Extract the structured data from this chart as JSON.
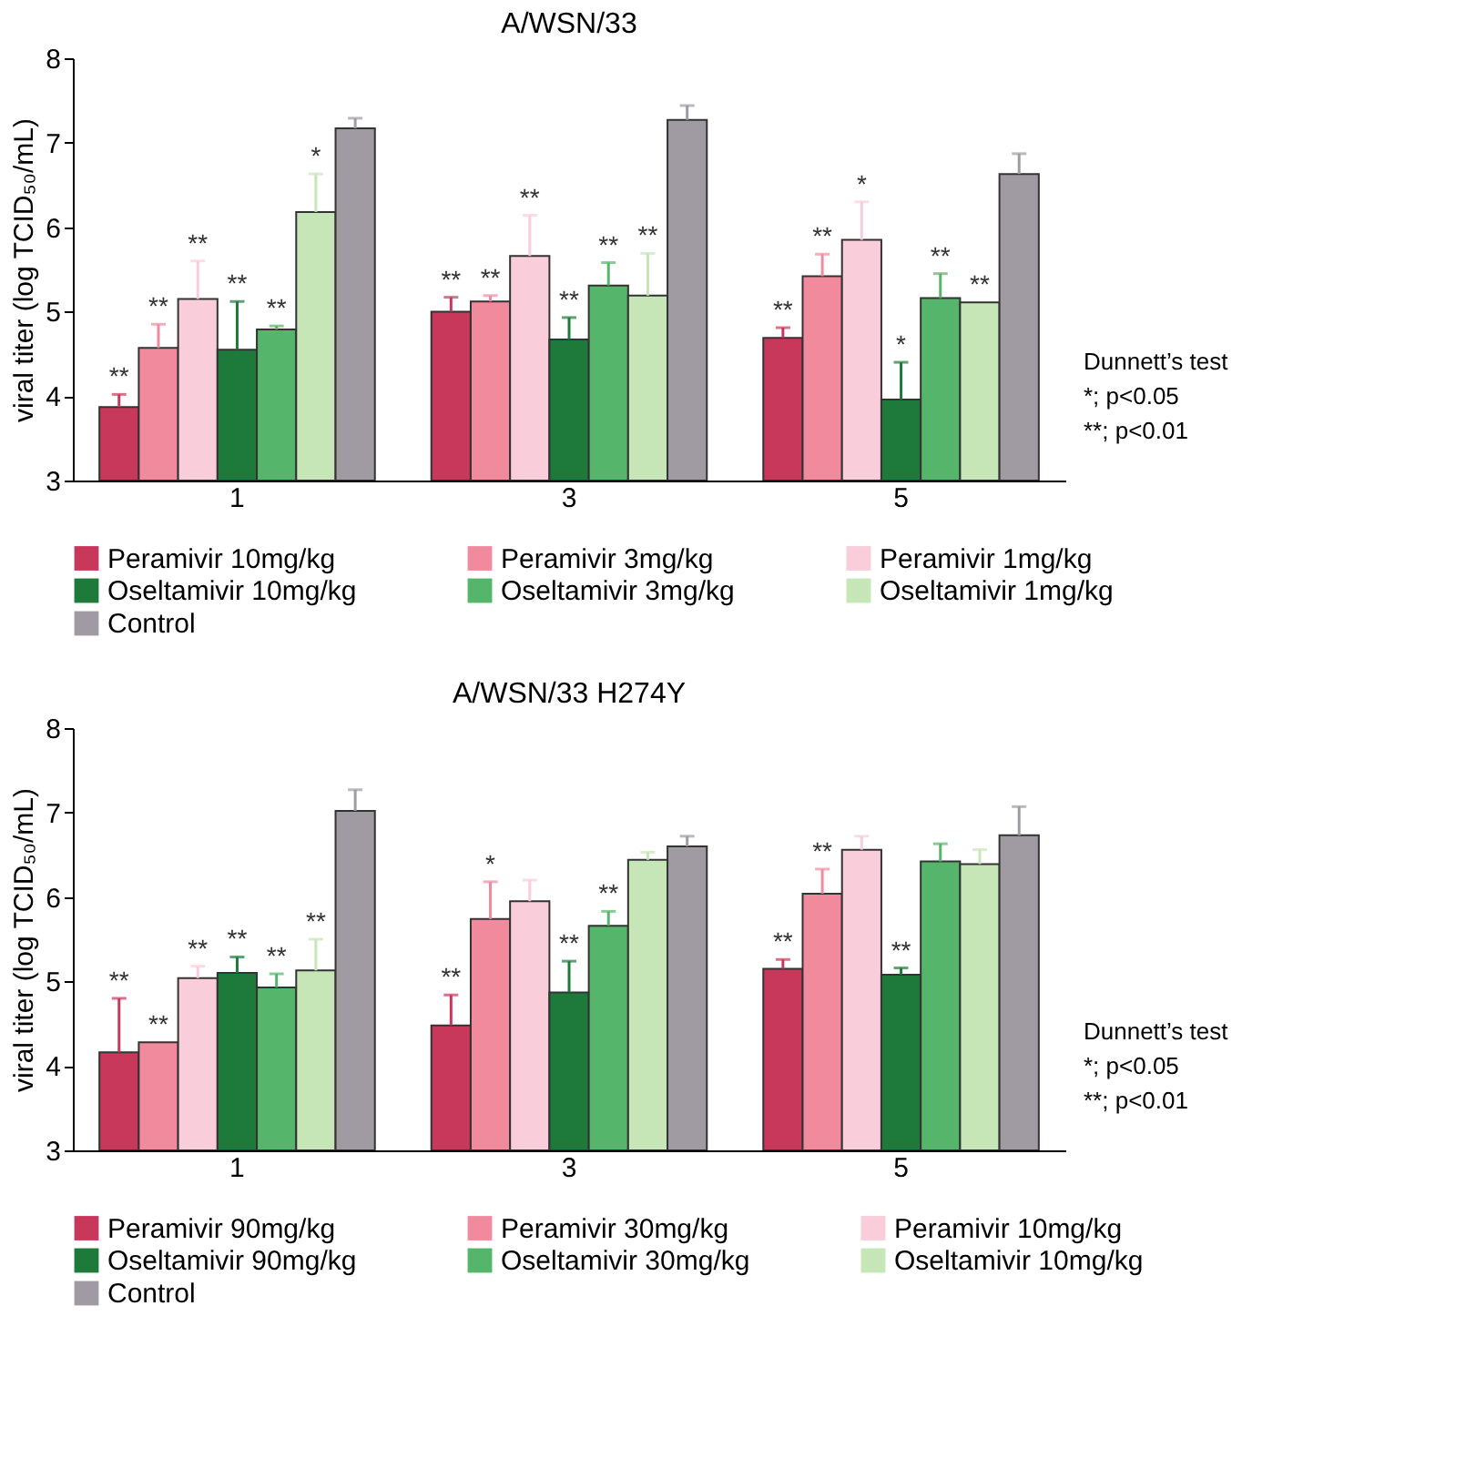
{
  "chart_data": [
    {
      "type": "bar",
      "title": "A/WSN/33",
      "ylabel": "viral titer (log TCID₅₀/mL)",
      "categories": [
        "1",
        "3",
        "5"
      ],
      "ylim": [
        3,
        8
      ],
      "yticks": [
        3,
        4,
        5,
        6,
        7,
        8
      ],
      "legend": "bottom",
      "annotations": [
        "Dunnett’s test",
        "*; p<0.05",
        "**; p<0.01"
      ],
      "series": [
        {
          "name": "Peramivir 10mg/kg",
          "color": "#c8385a",
          "values": [
            3.87,
            5.0,
            4.69
          ],
          "errors": [
            [
              3.87,
              4.02
            ],
            [
              5.0,
              5.17
            ],
            [
              4.69,
              4.81
            ]
          ],
          "value_labels": [
            "**",
            "**",
            "**"
          ]
        },
        {
          "name": "Peramivir 3mg/kg",
          "color": "#f28a9e",
          "values": [
            4.57,
            5.12,
            5.42
          ],
          "errors": [
            [
              4.57,
              4.85
            ],
            [
              5.12,
              5.19
            ],
            [
              5.42,
              5.68
            ]
          ],
          "value_labels": [
            "**",
            "**",
            "**"
          ]
        },
        {
          "name": "Peramivir 1mg/kg",
          "color": "#f9cdd9",
          "values": [
            5.15,
            5.66,
            5.85
          ],
          "errors": [
            [
              5.15,
              5.6
            ],
            [
              5.66,
              6.14
            ],
            [
              5.85,
              6.3
            ]
          ],
          "value_labels": [
            "**",
            "**",
            "*"
          ]
        },
        {
          "name": "Oseltamivir 10mg/kg",
          "color": "#1e7a3a",
          "values": [
            4.55,
            4.67,
            3.96
          ],
          "errors": [
            [
              4.55,
              5.12
            ],
            [
              4.67,
              4.93
            ],
            [
              3.96,
              4.4
            ]
          ],
          "value_labels": [
            "**",
            "**",
            "*"
          ]
        },
        {
          "name": "Oseltamivir 3mg/kg",
          "color": "#55b56a",
          "values": [
            4.79,
            5.31,
            5.16
          ],
          "errors": [
            [
              4.79,
              4.83
            ],
            [
              5.31,
              5.58
            ],
            [
              5.16,
              5.45
            ]
          ],
          "value_labels": [
            "**",
            "**",
            "**"
          ]
        },
        {
          "name": "Oseltamivir 1mg/kg",
          "color": "#c6e6b8",
          "values": [
            6.18,
            5.19,
            5.11
          ],
          "errors": [
            [
              6.18,
              6.63
            ],
            [
              5.19,
              5.69
            ],
            null
          ],
          "value_labels": [
            "*",
            "**",
            "**"
          ]
        },
        {
          "name": "Control",
          "color": "#a09aa2",
          "values": [
            7.17,
            7.27,
            6.63
          ],
          "errors": [
            [
              7.17,
              7.29
            ],
            [
              7.27,
              7.44
            ],
            [
              6.63,
              6.87
            ]
          ],
          "value_labels": [
            null,
            null,
            null
          ]
        }
      ]
    },
    {
      "type": "bar",
      "title": "A/WSN/33 H274Y",
      "ylabel": "viral titer (log TCID₅₀/mL)",
      "categories": [
        "1",
        "3",
        "5"
      ],
      "ylim": [
        3,
        8
      ],
      "yticks": [
        3,
        4,
        5,
        6,
        7,
        8
      ],
      "legend": "bottom",
      "annotations": [
        "Dunnett’s test",
        "*; p<0.05",
        "**; p<0.01"
      ],
      "series": [
        {
          "name": "Peramivir 90mg/kg",
          "color": "#c8385a",
          "values": [
            4.16,
            4.48,
            5.15
          ],
          "errors": [
            [
              4.16,
              4.8
            ],
            [
              4.48,
              4.84
            ],
            [
              5.15,
              5.26
            ]
          ],
          "value_labels": [
            "**",
            "**",
            "**"
          ]
        },
        {
          "name": "Peramivir 30mg/kg",
          "color": "#f28a9e",
          "values": [
            4.28,
            5.74,
            6.04
          ],
          "errors": [
            null,
            [
              5.74,
              6.18
            ],
            [
              6.04,
              6.33
            ]
          ],
          "value_labels": [
            "**",
            "*",
            "**"
          ]
        },
        {
          "name": "Peramivir 10mg/kg",
          "color": "#f9cdd9",
          "values": [
            5.04,
            5.95,
            6.56
          ],
          "errors": [
            [
              5.04,
              5.18
            ],
            [
              5.95,
              6.2
            ],
            [
              6.56,
              6.72
            ]
          ],
          "value_labels": [
            "**",
            null,
            null
          ]
        },
        {
          "name": "Oseltamivir 90mg/kg",
          "color": "#1e7a3a",
          "values": [
            5.1,
            4.87,
            5.08
          ],
          "errors": [
            [
              5.1,
              5.29
            ],
            [
              4.87,
              5.24
            ],
            [
              5.08,
              5.16
            ]
          ],
          "value_labels": [
            "**",
            "**",
            "**"
          ]
        },
        {
          "name": "Oseltamivir 30mg/kg",
          "color": "#55b56a",
          "values": [
            4.93,
            5.66,
            6.42
          ],
          "errors": [
            [
              4.93,
              5.09
            ],
            [
              5.66,
              5.83
            ],
            [
              6.42,
              6.63
            ]
          ],
          "value_labels": [
            "**",
            "**",
            null
          ]
        },
        {
          "name": "Oseltamivir 10mg/kg",
          "color": "#c6e6b8",
          "values": [
            5.13,
            6.44,
            6.39
          ],
          "errors": [
            [
              5.13,
              5.5
            ],
            [
              6.44,
              6.53
            ],
            [
              6.39,
              6.56
            ]
          ],
          "value_labels": [
            "**",
            null,
            null
          ]
        },
        {
          "name": "Control",
          "color": "#a09aa2",
          "values": [
            7.02,
            6.6,
            6.73
          ],
          "errors": [
            [
              7.02,
              7.27
            ],
            [
              6.6,
              6.72
            ],
            [
              6.73,
              7.07
            ]
          ],
          "value_labels": [
            null,
            null,
            null
          ]
        }
      ]
    }
  ]
}
